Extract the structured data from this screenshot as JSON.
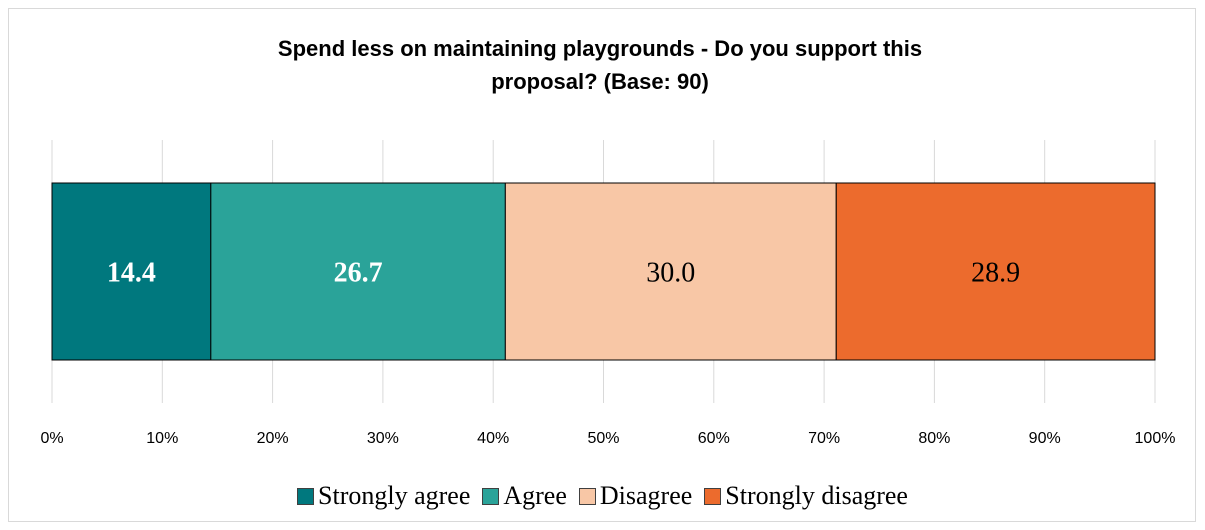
{
  "chart_data": {
    "type": "bar",
    "orientation": "horizontal-stacked-100",
    "title": "Spend less on maintaining playgrounds -  Do you support this proposal? (Base: 90)",
    "title_lines": [
      "Spend less on maintaining playgrounds -  Do you support this",
      "proposal? (Base: 90)"
    ],
    "series": [
      {
        "name": "Strongly agree",
        "value": 14.4,
        "label": "14.4",
        "color": "#00787E",
        "label_color": "#ffffff",
        "label_bold": true
      },
      {
        "name": "Agree",
        "value": 26.7,
        "label": "26.7",
        "color": "#2AA399",
        "label_color": "#ffffff",
        "label_bold": true
      },
      {
        "name": "Disagree",
        "value": 30.0,
        "label": "30.0",
        "color": "#F8C7A6",
        "label_color": "#000000",
        "label_bold": false
      },
      {
        "name": "Strongly disagree",
        "value": 28.9,
        "label": "28.9",
        "color": "#EC6B2D",
        "label_color": "#000000",
        "label_bold": false
      }
    ],
    "x_ticks": [
      "0%",
      "10%",
      "20%",
      "30%",
      "40%",
      "50%",
      "60%",
      "70%",
      "80%",
      "90%",
      "100%"
    ],
    "xlim": [
      0,
      100
    ],
    "grid": true,
    "legend_position": "bottom"
  }
}
